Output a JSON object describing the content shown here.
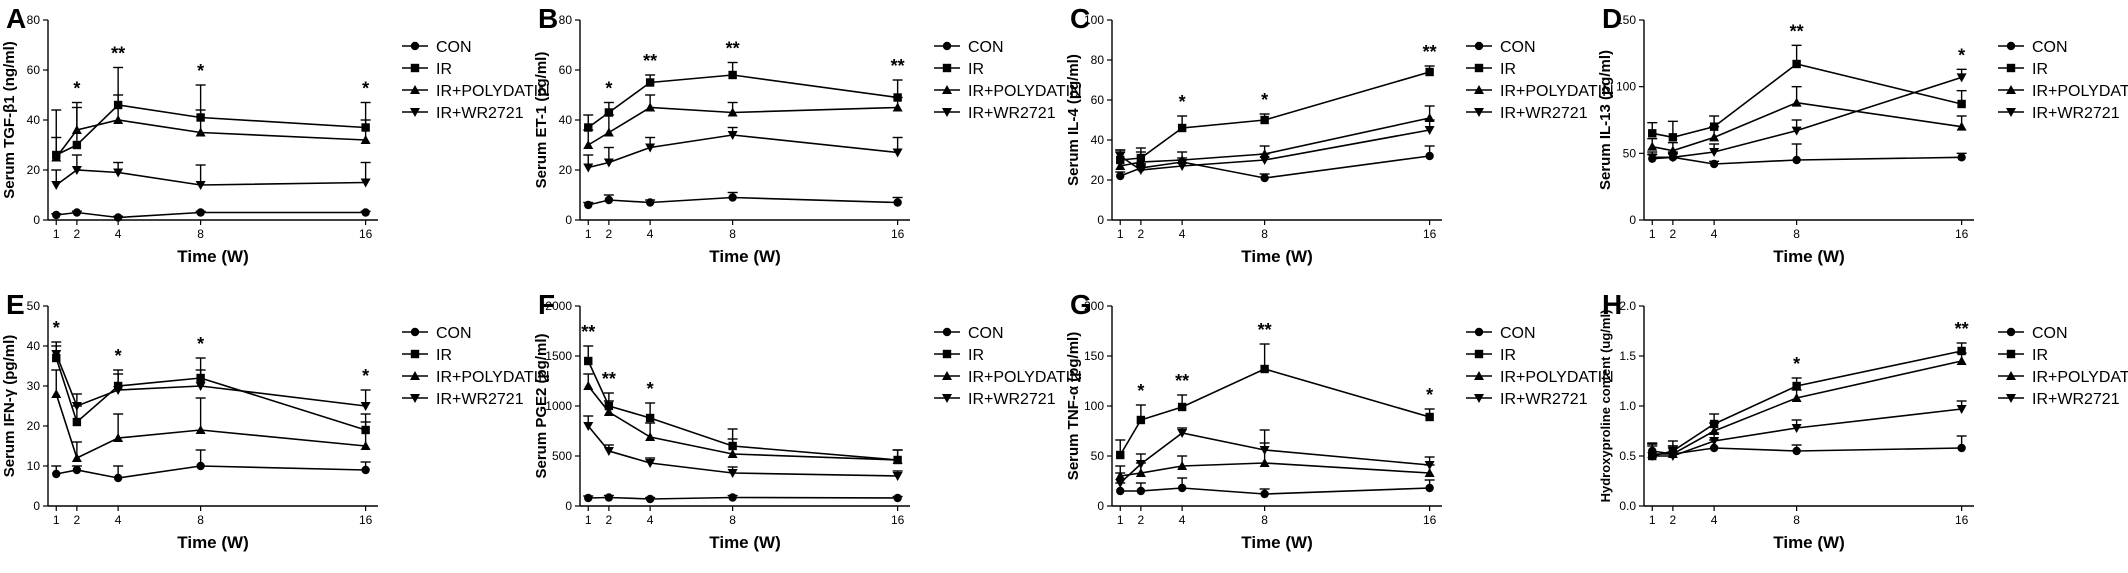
{
  "figure": {
    "time_ticks": [
      1,
      2,
      4,
      8,
      16
    ],
    "legend_labels": [
      "CON",
      "IR",
      "IR+POLYDATIN",
      "IR+WR2721"
    ],
    "series_markers": [
      "circle",
      "square",
      "triangle-up",
      "triangle-down"
    ],
    "colors": {
      "ink": "#000000",
      "background": "#ffffff"
    }
  },
  "chart_data": [
    {
      "type": "line",
      "panel_label": "A",
      "xlabel": "Time (W)",
      "ylabel": "Serum TGF-β1 (ng/ml)",
      "x": [
        1,
        2,
        4,
        8,
        16
      ],
      "ylim": [
        0,
        80
      ],
      "yticks": [
        0,
        20,
        40,
        60,
        80
      ],
      "series": [
        {
          "name": "CON",
          "values": [
            2,
            3,
            1,
            3,
            3
          ],
          "errors": [
            0.5,
            0.5,
            0.5,
            0.5,
            0.5
          ]
        },
        {
          "name": "IR",
          "values": [
            26,
            30,
            46,
            41,
            37
          ],
          "errors": [
            18,
            17,
            15,
            13,
            10
          ]
        },
        {
          "name": "IR+POLYDATIN",
          "values": [
            25,
            36,
            40,
            35,
            32
          ],
          "errors": [
            8,
            9,
            10,
            9,
            8
          ]
        },
        {
          "name": "IR+WR2721",
          "values": [
            14,
            20,
            19,
            14,
            15
          ],
          "errors": [
            6,
            6,
            4,
            8,
            8
          ]
        }
      ],
      "annotations": [
        {
          "x": 2,
          "text": "*"
        },
        {
          "x": 4,
          "text": "**"
        },
        {
          "x": 8,
          "text": "*"
        },
        {
          "x": 16,
          "text": "*"
        }
      ]
    },
    {
      "type": "line",
      "panel_label": "B",
      "xlabel": "Time (W)",
      "ylabel": "Serum ET-1 (pg/ml)",
      "x": [
        1,
        2,
        4,
        8,
        16
      ],
      "ylim": [
        0,
        80
      ],
      "yticks": [
        0,
        20,
        40,
        60,
        80
      ],
      "series": [
        {
          "name": "CON",
          "values": [
            6,
            8,
            7,
            9,
            7
          ],
          "errors": [
            1,
            2,
            1,
            2,
            2
          ]
        },
        {
          "name": "IR",
          "values": [
            37,
            43,
            55,
            58,
            49
          ],
          "errors": [
            5,
            4,
            3,
            5,
            7
          ]
        },
        {
          "name": "IR+POLYDATIN",
          "values": [
            30,
            35,
            45,
            43,
            45
          ],
          "errors": [
            6,
            7,
            5,
            4,
            4
          ]
        },
        {
          "name": "IR+WR2721",
          "values": [
            21,
            23,
            29,
            34,
            27
          ],
          "errors": [
            5,
            6,
            4,
            3,
            6
          ]
        }
      ],
      "annotations": [
        {
          "x": 2,
          "text": "*"
        },
        {
          "x": 4,
          "text": "**"
        },
        {
          "x": 8,
          "text": "**"
        },
        {
          "x": 16,
          "text": "**"
        }
      ]
    },
    {
      "type": "line",
      "panel_label": "C",
      "xlabel": "Time (W)",
      "ylabel": "Serum IL-4 (pg/ml)",
      "x": [
        1,
        2,
        4,
        8,
        16
      ],
      "ylim": [
        0,
        100
      ],
      "yticks": [
        0,
        20,
        40,
        60,
        80,
        100
      ],
      "series": [
        {
          "name": "CON",
          "values": [
            22,
            26,
            29,
            21,
            32
          ],
          "errors": [
            2,
            2,
            2,
            2,
            5
          ]
        },
        {
          "name": "IR",
          "values": [
            30,
            31,
            46,
            50,
            74
          ],
          "errors": [
            5,
            5,
            6,
            3,
            3
          ]
        },
        {
          "name": "IR+POLYDATIN",
          "values": [
            27,
            29,
            30,
            33,
            51
          ],
          "errors": [
            7,
            5,
            4,
            4,
            6
          ]
        },
        {
          "name": "IR+WR2721",
          "values": [
            32,
            25,
            27,
            30,
            45
          ],
          "errors": [
            3,
            3,
            3,
            3,
            5
          ]
        }
      ],
      "annotations": [
        {
          "x": 4,
          "text": "*"
        },
        {
          "x": 8,
          "text": "*"
        },
        {
          "x": 16,
          "text": "**"
        }
      ]
    },
    {
      "type": "line",
      "panel_label": "D",
      "xlabel": "Time (W)",
      "ylabel": "Serum IL-13 (pg/ml)",
      "x": [
        1,
        2,
        4,
        8,
        16
      ],
      "ylim": [
        0,
        150
      ],
      "yticks": [
        0,
        50,
        100,
        150
      ],
      "series": [
        {
          "name": "CON",
          "values": [
            46,
            47,
            42,
            45,
            47
          ],
          "errors": [
            3,
            3,
            2,
            12,
            3
          ]
        },
        {
          "name": "IR",
          "values": [
            65,
            62,
            70,
            117,
            87
          ],
          "errors": [
            8,
            12,
            8,
            14,
            10
          ]
        },
        {
          "name": "IR+POLYDATIN",
          "values": [
            55,
            52,
            62,
            88,
            70
          ],
          "errors": [
            6,
            6,
            8,
            12,
            8
          ]
        },
        {
          "name": "IR+WR2721",
          "values": [
            47,
            47,
            51,
            67,
            107
          ],
          "errors": [
            4,
            4,
            6,
            8,
            6
          ]
        }
      ],
      "annotations": [
        {
          "x": 8,
          "text": "**"
        },
        {
          "x": 16,
          "text": "*"
        }
      ]
    },
    {
      "type": "line",
      "panel_label": "E",
      "xlabel": "Time (W)",
      "ylabel": "Serum IFN-γ (pg/ml)",
      "x": [
        1,
        2,
        4,
        8,
        16
      ],
      "ylim": [
        0,
        50
      ],
      "yticks": [
        0,
        10,
        20,
        30,
        40,
        50
      ],
      "series": [
        {
          "name": "CON",
          "values": [
            8,
            9,
            7,
            10,
            9
          ],
          "errors": [
            2,
            1,
            3,
            4,
            2
          ]
        },
        {
          "name": "IR",
          "values": [
            37,
            21,
            30,
            32,
            19
          ],
          "errors": [
            3,
            4,
            4,
            5,
            4
          ]
        },
        {
          "name": "IR+POLYDATIN",
          "values": [
            28,
            12,
            17,
            19,
            15
          ],
          "errors": [
            6,
            4,
            6,
            8,
            6
          ]
        },
        {
          "name": "IR+WR2721",
          "values": [
            38,
            25,
            29,
            30,
            25
          ],
          "errors": [
            3,
            3,
            4,
            4,
            4
          ]
        }
      ],
      "annotations": [
        {
          "x": 1,
          "text": "*"
        },
        {
          "x": 4,
          "text": "*"
        },
        {
          "x": 8,
          "text": "*"
        },
        {
          "x": 16,
          "text": "*"
        }
      ]
    },
    {
      "type": "line",
      "panel_label": "F",
      "xlabel": "Time (W)",
      "ylabel": "Serum PGE2 (pg/ml)",
      "x": [
        1,
        2,
        4,
        8,
        16
      ],
      "ylim": [
        0,
        2000
      ],
      "yticks": [
        0,
        500,
        1000,
        1500,
        2000
      ],
      "series": [
        {
          "name": "CON",
          "values": [
            80,
            85,
            70,
            85,
            80
          ],
          "errors": [
            20,
            20,
            15,
            20,
            15
          ]
        },
        {
          "name": "IR",
          "values": [
            1450,
            1000,
            880,
            600,
            460
          ],
          "errors": [
            150,
            130,
            150,
            170,
            100
          ]
        },
        {
          "name": "IR+POLYDATIN",
          "values": [
            1200,
            940,
            690,
            520,
            460
          ],
          "errors": [
            120,
            110,
            140,
            150,
            100
          ]
        },
        {
          "name": "IR+WR2721",
          "values": [
            800,
            550,
            430,
            330,
            300
          ],
          "errors": [
            100,
            60,
            50,
            60,
            50
          ]
        }
      ],
      "annotations": [
        {
          "x": 1,
          "text": "**"
        },
        {
          "x": 2,
          "text": "**"
        },
        {
          "x": 4,
          "text": "*"
        }
      ]
    },
    {
      "type": "line",
      "panel_label": "G",
      "xlabel": "Time (W)",
      "ylabel": "Serum TNF-α (pg/ml)",
      "x": [
        1,
        2,
        4,
        8,
        16
      ],
      "ylim": [
        0,
        200
      ],
      "yticks": [
        0,
        50,
        100,
        150,
        200
      ],
      "series": [
        {
          "name": "CON",
          "values": [
            15,
            15,
            18,
            12,
            18
          ],
          "errors": [
            8,
            8,
            10,
            5,
            8
          ]
        },
        {
          "name": "IR",
          "values": [
            51,
            86,
            99,
            137,
            89
          ],
          "errors": [
            15,
            15,
            12,
            25,
            8
          ]
        },
        {
          "name": "IR+POLYDATIN",
          "values": [
            30,
            33,
            40,
            43,
            33
          ],
          "errors": [
            10,
            10,
            10,
            20,
            8
          ]
        },
        {
          "name": "IR+WR2721",
          "values": [
            23,
            42,
            73,
            56,
            41
          ],
          "errors": [
            10,
            10,
            5,
            20,
            8
          ]
        }
      ],
      "annotations": [
        {
          "x": 2,
          "text": "*"
        },
        {
          "x": 4,
          "text": "**"
        },
        {
          "x": 8,
          "text": "**"
        },
        {
          "x": 16,
          "text": "*"
        }
      ]
    },
    {
      "type": "line",
      "panel_label": "H",
      "xlabel": "Time (W)",
      "ylabel": "Hydroxyproline content (ug/ml)",
      "x": [
        1,
        2,
        4,
        8,
        16
      ],
      "ylim": [
        0,
        2.0
      ],
      "yticks": [
        0.0,
        0.5,
        1.0,
        1.5,
        2.0
      ],
      "series": [
        {
          "name": "CON",
          "values": [
            0.55,
            0.52,
            0.58,
            0.55,
            0.58
          ],
          "errors": [
            0.08,
            0.08,
            0.08,
            0.06,
            0.12
          ]
        },
        {
          "name": "IR",
          "values": [
            0.5,
            0.55,
            0.82,
            1.2,
            1.55
          ],
          "errors": [
            0.12,
            0.1,
            0.1,
            0.08,
            0.08
          ]
        },
        {
          "name": "IR+POLYDATIN",
          "values": [
            0.52,
            0.52,
            0.75,
            1.08,
            1.45
          ],
          "errors": [
            0.1,
            0.08,
            0.08,
            0.08,
            0.08
          ]
        },
        {
          "name": "IR+WR2721",
          "values": [
            0.5,
            0.5,
            0.65,
            0.78,
            0.97
          ],
          "errors": [
            0.1,
            0.08,
            0.08,
            0.08,
            0.08
          ]
        }
      ],
      "annotations": [
        {
          "x": 8,
          "text": "*"
        },
        {
          "x": 16,
          "text": "**"
        }
      ]
    }
  ]
}
